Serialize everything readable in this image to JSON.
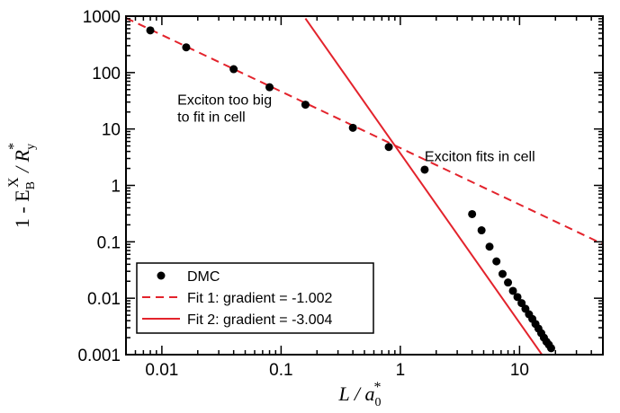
{
  "chart_data": {
    "type": "scatter",
    "xscale": "log",
    "yscale": "log",
    "xlim": [
      0.005,
      50
    ],
    "ylim": [
      0.001,
      1000
    ],
    "grid": false,
    "xlabel": {
      "main": "L / a",
      "sub": "0",
      "sup": "*"
    },
    "ylabel": {
      "prefix": "1 - E",
      "sub1": "B",
      "sup1": "X",
      "mid": " / R",
      "sub2": "y",
      "sup2": "*"
    },
    "x_ticks": [
      0.01,
      0.1,
      1,
      10
    ],
    "x_tick_labels": [
      "0.01",
      "0.1",
      "1",
      "10"
    ],
    "y_ticks": [
      0.001,
      0.01,
      0.1,
      1,
      10,
      100,
      1000
    ],
    "y_tick_labels": [
      "0.001",
      "0.01",
      "0.1",
      "1",
      "10",
      "100",
      "1000"
    ],
    "series": [
      {
        "name": "DMC",
        "kind": "points",
        "color": "#000000",
        "points": [
          [
            0.008,
            560
          ],
          [
            0.016,
            280
          ],
          [
            0.04,
            115
          ],
          [
            0.08,
            55
          ],
          [
            0.16,
            27
          ],
          [
            0.4,
            10.5
          ],
          [
            0.8,
            4.8
          ],
          [
            1.6,
            1.9
          ],
          [
            4.0,
            0.31
          ],
          [
            4.8,
            0.16
          ],
          [
            5.6,
            0.082
          ],
          [
            6.4,
            0.045
          ],
          [
            7.2,
            0.027
          ],
          [
            8.0,
            0.019
          ],
          [
            8.8,
            0.0135
          ],
          [
            9.6,
            0.0105
          ],
          [
            10.4,
            0.0082
          ],
          [
            11.2,
            0.0065
          ],
          [
            12.0,
            0.0052
          ],
          [
            12.8,
            0.0043
          ],
          [
            13.6,
            0.0035
          ],
          [
            14.4,
            0.0029
          ],
          [
            15.2,
            0.0024
          ],
          [
            16.0,
            0.002
          ],
          [
            16.8,
            0.0017
          ],
          [
            17.6,
            0.0015
          ],
          [
            18.4,
            0.0013
          ]
        ]
      },
      {
        "name": "Fit 1: gradient = -1.002",
        "kind": "line",
        "style": "dashed",
        "color": "#e3232c",
        "x_range": [
          0.005,
          50
        ],
        "anchor": [
          1,
          4.6
        ],
        "gradient": -1.002
      },
      {
        "name": "Fit 2: gradient = -3.004",
        "kind": "line",
        "style": "solid",
        "color": "#e3232c",
        "x_range": [
          0.16,
          18.5
        ],
        "anchor": [
          1,
          3.7
        ],
        "gradient": -3.004
      }
    ],
    "annotations": [
      {
        "lines": [
          "Exciton too big",
          "to fit in cell"
        ],
        "x": 0.0135,
        "y": 27
      },
      {
        "lines": [
          "Exciton fits in cell"
        ],
        "x": 1.6,
        "y": 2.7
      }
    ],
    "legend": {
      "position": "bottom-left",
      "entries": [
        {
          "label": "DMC",
          "marker": "dot"
        },
        {
          "label": "Fit 1: gradient = -1.002",
          "marker": "dashed-line"
        },
        {
          "label": "Fit 2: gradient = -3.004",
          "marker": "solid-line"
        }
      ]
    }
  }
}
